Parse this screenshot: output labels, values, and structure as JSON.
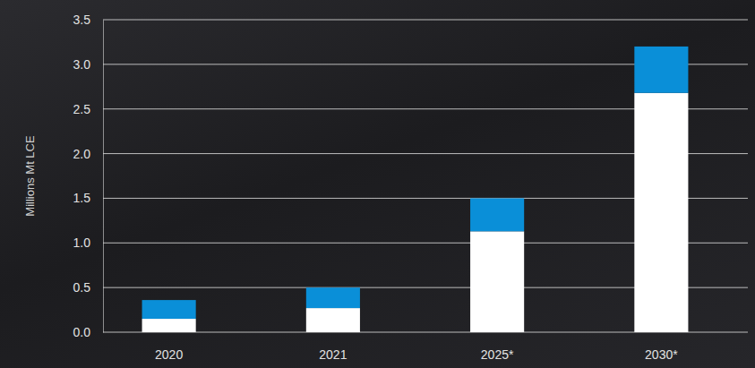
{
  "chart_data": {
    "type": "bar",
    "stacked": true,
    "grid": true,
    "ylabel": "Millions Mt LCE",
    "categories": [
      "2020",
      "2021",
      "2025*",
      "2030*"
    ],
    "series": [
      {
        "color": "#ffffff",
        "values": [
          0.15,
          0.27,
          1.13,
          2.68
        ]
      },
      {
        "color": "#0a8fd8",
        "values": [
          0.21,
          0.23,
          0.37,
          0.52
        ]
      }
    ],
    "ylim": [
      0,
      3.5
    ],
    "yticks": [
      {
        "value": 0,
        "label": "0.0"
      },
      0.5,
      {
        "value": 1,
        "label": "1.0"
      },
      1.5,
      {
        "value": 2,
        "label": "2.0"
      },
      2.5,
      {
        "value": 3,
        "label": "3.0"
      },
      3.5
    ]
  }
}
